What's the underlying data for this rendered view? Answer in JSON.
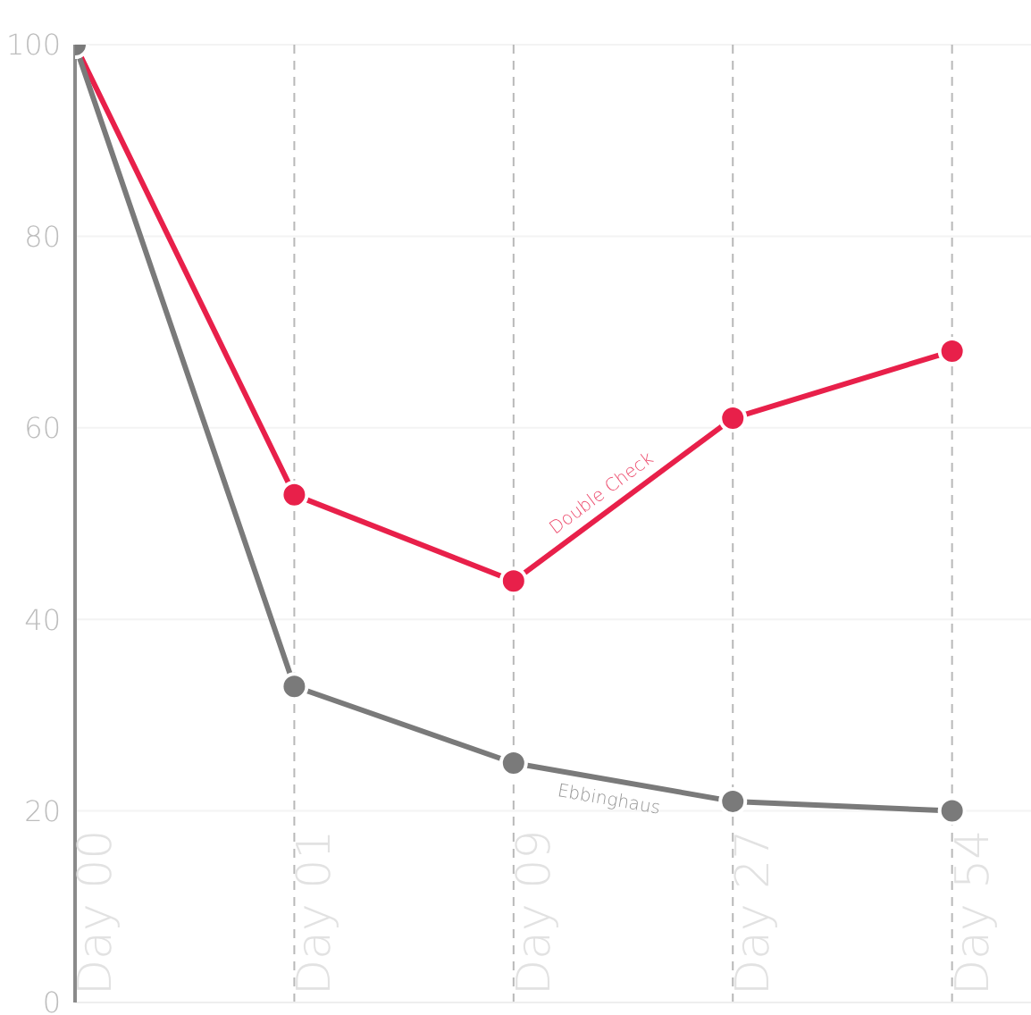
{
  "chart_data": {
    "type": "line",
    "categories": [
      "Day 00",
      "Day 01",
      "Day 09",
      "Day 27",
      "Day 54"
    ],
    "series": [
      {
        "name": "Double Check",
        "color": "#e8204a",
        "values": [
          100,
          53,
          44,
          61,
          68
        ]
      },
      {
        "name": "Ebbinghaus",
        "color": "#7a7a7a",
        "values": [
          100,
          33,
          25,
          21,
          20
        ]
      }
    ],
    "ylim": [
      0,
      100
    ],
    "yticks": [
      0,
      20,
      40,
      60,
      80,
      100
    ],
    "grid": true,
    "marker": "circle",
    "line_style": "solid"
  }
}
